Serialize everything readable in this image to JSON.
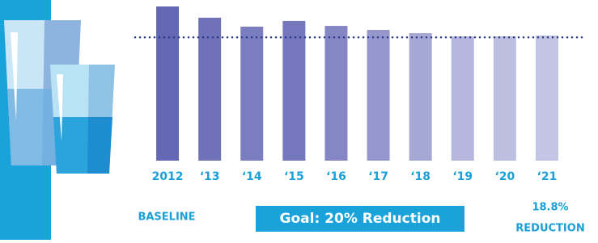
{
  "chart_data": {
    "type": "bar",
    "categories": [
      "2012",
      "‘13",
      "‘14",
      "‘15",
      "‘16",
      "‘17",
      "‘18",
      "‘19",
      "‘20",
      "‘21"
    ],
    "values": [
      100,
      92.7,
      86.9,
      90.6,
      87.4,
      84.8,
      82.7,
      80.6,
      80.6,
      81.2
    ],
    "colors": [
      "#6467b4",
      "#6f72b9",
      "#7a7dbf",
      "#7477bc",
      "#8587c4",
      "#9597cc",
      "#a6a8d4",
      "#b5b7dc",
      "#bdbfe1",
      "#c3c5e4"
    ],
    "ylim": [
      0,
      100
    ],
    "goal_line": 80,
    "goal_line_color": "#2c3a8a",
    "annotations": {
      "baseline": "BASELINE",
      "goal": "Goal: 20% Reduction",
      "reduction_value": "18.8%",
      "reduction_label": "REDUCTION"
    }
  }
}
